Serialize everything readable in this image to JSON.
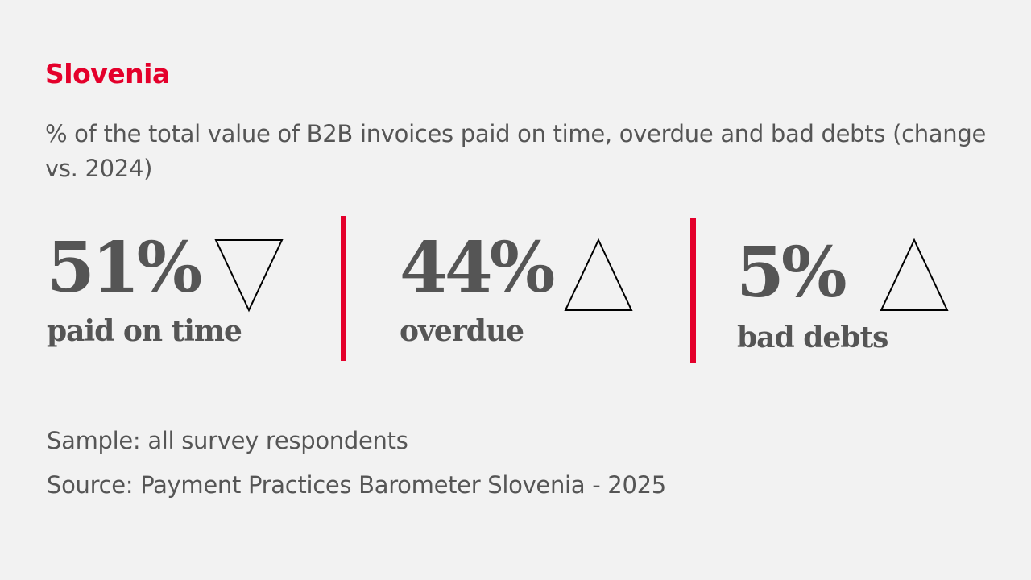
{
  "title": "Slovenia",
  "subtitle": "% of the total value of B2B invoices paid on time, overdue and bad debts (change vs. 2024)",
  "colors": {
    "accent": "#e4002b",
    "text": "#555555",
    "background": "#f2f2f2"
  },
  "chart_data": {
    "type": "table",
    "title": "% of the total value of B2B invoices paid on time, overdue and bad debts (change vs. 2024)",
    "categories": [
      "paid on time",
      "overdue",
      "bad debts"
    ],
    "values": [
      51,
      44,
      5
    ],
    "display": [
      "51%",
      "44%",
      "5%"
    ],
    "change_vs_2024": [
      "down",
      "up",
      "up"
    ]
  },
  "footer": {
    "sample": "Sample: all survey respondents",
    "source": "Source: Payment Practices Barometer Slovenia - 2025"
  }
}
